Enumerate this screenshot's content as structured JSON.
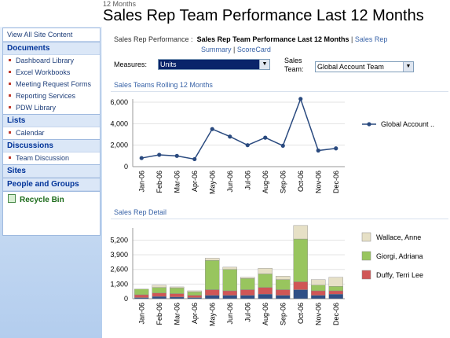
{
  "breadcrumb": "12 Months",
  "page_title": "Sales Rep Team Performance Last 12 Months",
  "nav": {
    "view_all": "View All Site Content",
    "sections": [
      {
        "title": "Documents",
        "items": [
          "Dashboard Library",
          "Excel Workbooks",
          "Meeting Request Forms",
          "Reporting Services",
          "PDW Library"
        ]
      },
      {
        "title": "Lists",
        "items": [
          "Calendar"
        ]
      },
      {
        "title": "Discussions",
        "items": [
          "Team Discussion"
        ]
      },
      {
        "title": "Sites",
        "items": []
      },
      {
        "title": "People and Groups",
        "items": []
      }
    ],
    "recycle_bin": "Recycle Bin"
  },
  "report_path": {
    "label": "Sales Rep Performance :",
    "current": "Sales Rep Team Performance Last 12 Months",
    "sep": "|",
    "link1": "Sales Rep",
    "link2": "Summary",
    "sep2": "|",
    "link3": "ScoreCard"
  },
  "filters": {
    "measures_label": "Measures:",
    "measures_value": "Units",
    "team_label_1": "Sales",
    "team_label_2": "Team:",
    "team_value": "Global Account Team"
  },
  "section1_title": "Sales Teams Rolling 12 Months",
  "section2_title": "Sales Rep Detail",
  "chart_data": [
    {
      "type": "line",
      "categories": [
        "Jan-06",
        "Feb-06",
        "Mar-06",
        "Apr-06",
        "May-06",
        "Jun-06",
        "Jul-06",
        "Aug-06",
        "Sep-06",
        "Oct-06",
        "Nov-06",
        "Dec-06"
      ],
      "series": [
        {
          "name": "Global Account ..",
          "values": [
            800,
            1100,
            1000,
            700,
            3500,
            2800,
            2000,
            2700,
            1950,
            6300,
            1500,
            1700
          ]
        }
      ],
      "ylim": [
        0,
        6000
      ],
      "yticks": [
        "0",
        "2,000",
        "4,000",
        "6,000"
      ],
      "ytick_values": [
        0,
        2000,
        4000,
        6000
      ],
      "legend": "right",
      "color": "#2a4a7f"
    },
    {
      "type": "bar",
      "stacked": true,
      "categories": [
        "Jan-06",
        "Feb-06",
        "Mar-06",
        "Apr-06",
        "May-06",
        "Jun-06",
        "Jul-06",
        "Aug-06",
        "Sep-06",
        "Oct-06",
        "Nov-06",
        "Dec-06"
      ],
      "series": [
        {
          "name": "Wallace, Anne",
          "color": "#e6e0c6",
          "values": [
            0,
            200,
            100,
            100,
            200,
            200,
            100,
            500,
            300,
            1200,
            500,
            800
          ]
        },
        {
          "name": "Giorgi, Adriana",
          "color": "#98c55e",
          "values": [
            500,
            500,
            500,
            300,
            2600,
            1900,
            1000,
            1200,
            900,
            3800,
            500,
            400
          ]
        },
        {
          "name": "Duffy, Terri Lee",
          "color": "#d05656",
          "values": [
            250,
            300,
            300,
            200,
            500,
            400,
            500,
            600,
            500,
            700,
            400,
            300
          ]
        },
        {
          "name": "",
          "color": "#2f4f86",
          "values": [
            100,
            200,
            150,
            100,
            300,
            300,
            300,
            400,
            300,
            800,
            300,
            400
          ]
        }
      ],
      "legend_order": [
        0,
        1,
        2
      ],
      "ylim": [
        0,
        6000
      ],
      "yticks": [
        "0",
        "1,300",
        "2,600",
        "3,900",
        "5,200"
      ],
      "ytick_values": [
        0,
        1300,
        2600,
        3900,
        5200
      ],
      "legend": "right"
    }
  ]
}
